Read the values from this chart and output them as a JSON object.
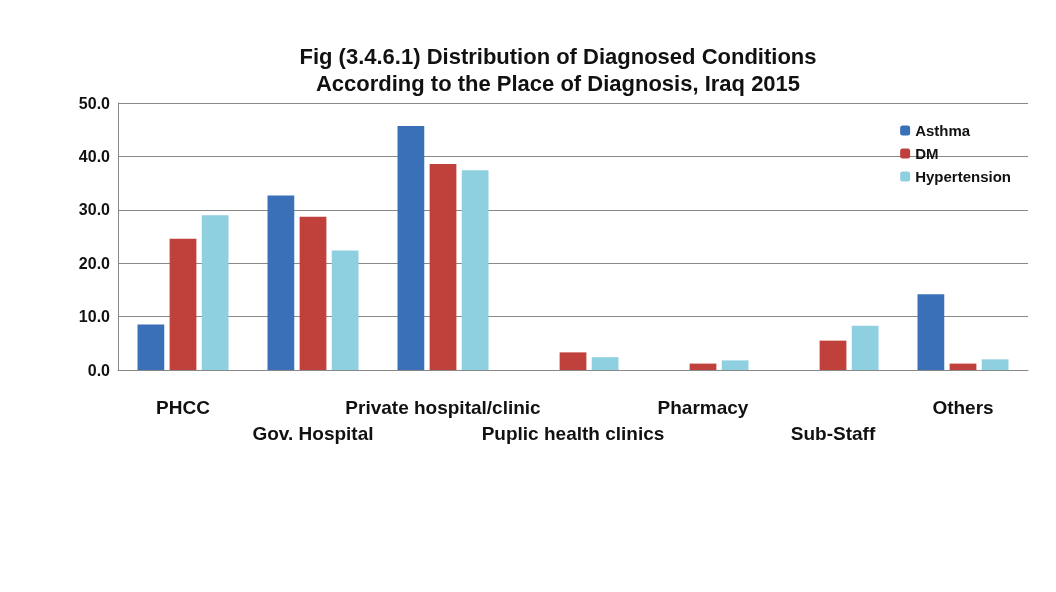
{
  "chart_data": {
    "type": "bar",
    "title": "Fig (3.4.6.1) Distribution of Diagnosed Conditions\nAccording to the Place of Diagnosis, Iraq 2015",
    "categories": [
      "PHCC",
      "Gov. Hospital",
      "Private hospital/clinic",
      "Puplic health clinics",
      "Pharmacy",
      "Sub-Staff",
      "Others"
    ],
    "series": [
      {
        "name": "Asthma",
        "color": "#3a70b8",
        "values": [
          8.5,
          32.7,
          45.7,
          null,
          null,
          null,
          14.2
        ]
      },
      {
        "name": "DM",
        "color": "#c0403c",
        "values": [
          24.6,
          28.7,
          38.6,
          3.3,
          1.2,
          5.5,
          1.2
        ]
      },
      {
        "name": "Hypertension",
        "color": "#8fd0e0",
        "values": [
          29,
          22.4,
          37.4,
          2.4,
          1.8,
          8.3,
          2
        ]
      }
    ],
    "ylim": [
      0,
      50
    ],
    "yticks": [
      {
        "value": 0,
        "label": "0.0"
      },
      {
        "value": 10,
        "label": "10.0"
      },
      {
        "value": 20,
        "label": "20.0"
      },
      {
        "value": 30,
        "label": "30.0"
      },
      {
        "value": 40,
        "label": "40.0"
      },
      {
        "value": 50,
        "label": "50.0"
      }
    ],
    "grid": "y",
    "legend": "top right"
  }
}
